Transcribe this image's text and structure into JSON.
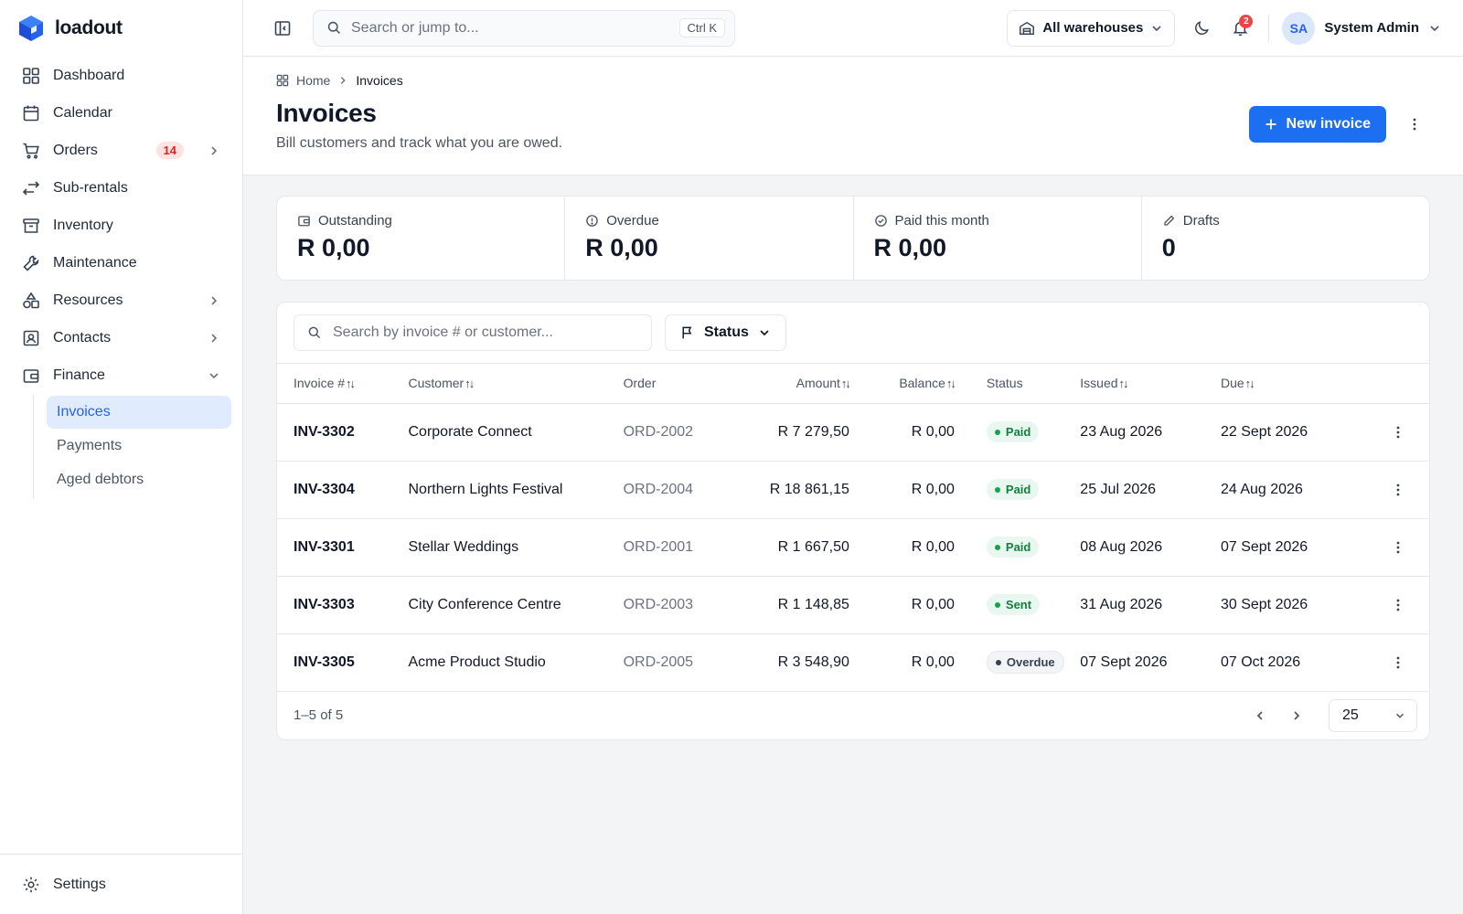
{
  "brand": {
    "name": "loadout"
  },
  "sidebar": {
    "items": [
      {
        "label": "Dashboard"
      },
      {
        "label": "Calendar"
      },
      {
        "label": "Orders",
        "badge": "14"
      },
      {
        "label": "Sub-rentals"
      },
      {
        "label": "Inventory"
      },
      {
        "label": "Maintenance"
      },
      {
        "label": "Resources"
      },
      {
        "label": "Contacts"
      },
      {
        "label": "Finance"
      }
    ],
    "finance_sub": [
      {
        "label": "Invoices",
        "active": true
      },
      {
        "label": "Payments"
      },
      {
        "label": "Aged debtors"
      }
    ],
    "settings_label": "Settings"
  },
  "topbar": {
    "search_placeholder": "Search or jump to...",
    "shortcut": "Ctrl K",
    "warehouse": "All warehouses",
    "notifications_count": "2",
    "user_initials": "SA",
    "user_name": "System Admin"
  },
  "page": {
    "breadcrumb": [
      "Home",
      "Invoices"
    ],
    "title": "Invoices",
    "subtitle": "Bill customers and track what you are owed.",
    "new_button": "New invoice"
  },
  "stats": [
    {
      "label": "Outstanding",
      "value": "R 0,00",
      "icon": "wallet-icon"
    },
    {
      "label": "Overdue",
      "value": "R 0,00",
      "icon": "alert-circle-icon"
    },
    {
      "label": "Paid this month",
      "value": "R 0,00",
      "icon": "check-circle-icon"
    },
    {
      "label": "Drafts",
      "value": "0",
      "icon": "pencil-icon"
    }
  ],
  "filters": {
    "search_placeholder": "Search by invoice # or customer...",
    "status_label": "Status"
  },
  "table": {
    "columns": [
      "Invoice #",
      "Customer",
      "Order",
      "Amount",
      "Balance",
      "Status",
      "Issued",
      "Due"
    ],
    "rows": [
      {
        "invoice": "INV-3302",
        "customer": "Corporate Connect",
        "order": "ORD-2002",
        "amount": "R 7 279,50",
        "balance": "R 0,00",
        "status": "Paid",
        "issued": "23 Aug 2026",
        "due": "22 Sept 2026"
      },
      {
        "invoice": "INV-3304",
        "customer": "Northern Lights Festival",
        "order": "ORD-2004",
        "amount": "R 18 861,15",
        "balance": "R 0,00",
        "status": "Paid",
        "issued": "25 Jul 2026",
        "due": "24 Aug 2026"
      },
      {
        "invoice": "INV-3301",
        "customer": "Stellar Weddings",
        "order": "ORD-2001",
        "amount": "R 1 667,50",
        "balance": "R 0,00",
        "status": "Paid",
        "issued": "08 Aug 2026",
        "due": "07 Sept 2026"
      },
      {
        "invoice": "INV-3303",
        "customer": "City Conference Centre",
        "order": "ORD-2003",
        "amount": "R 1 148,85",
        "balance": "R 0,00",
        "status": "Sent",
        "issued": "31 Aug 2026",
        "due": "30 Sept 2026"
      },
      {
        "invoice": "INV-3305",
        "customer": "Acme Product Studio",
        "order": "ORD-2005",
        "amount": "R 3 548,90",
        "balance": "R 0,00",
        "status": "Overdue",
        "issued": "07 Sept 2026",
        "due": "07 Oct 2026"
      }
    ]
  },
  "pagination": {
    "range": "1–5 of 5",
    "per_page": "25"
  },
  "colors": {
    "accent": "#1d6ff2",
    "active_bg": "#e0ebfd",
    "paid": "#16a34a",
    "badge_red": "#dc2626"
  }
}
